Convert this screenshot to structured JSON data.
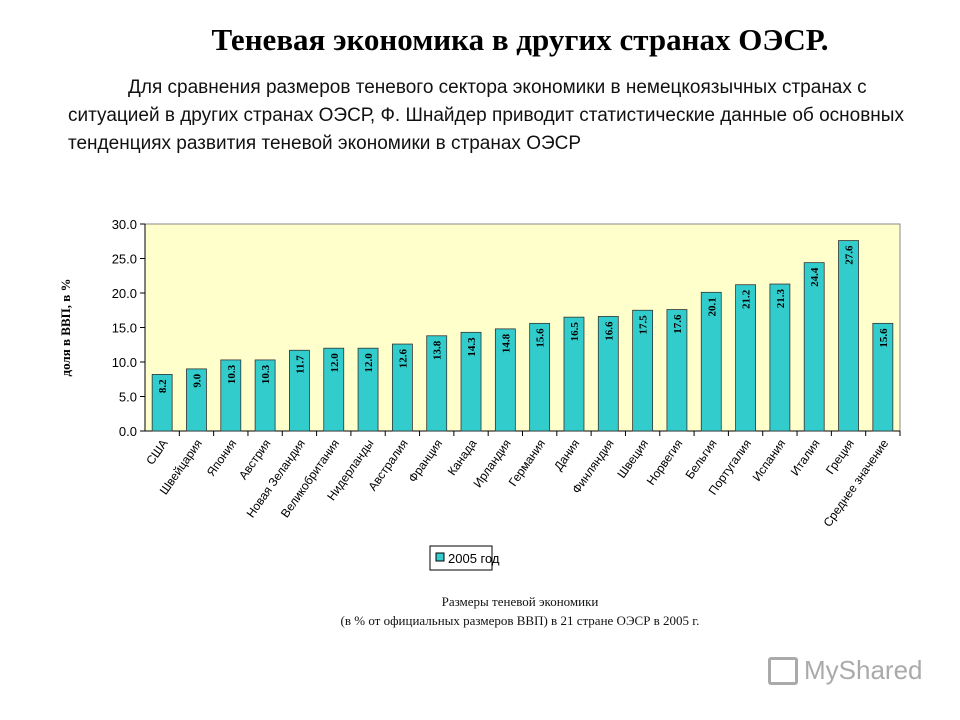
{
  "title": "Теневая экономика в других странах ОЭСР.",
  "intro": "Для сравнения размеров теневого сектора экономики в немецкоязычных странах с ситуацией в других странах ОЭСР, Ф. Шнайдер приводит статистические данные об основных тенденциях развития теневой экономики в странах ОЭСР",
  "caption_line1": "Размеры теневой экономики",
  "caption_line2": "(в % от официальных размеров ВВП) в 21 стране ОЭСР в 2005 г.",
  "logo": "MyShared",
  "chart_data": {
    "type": "bar",
    "ylabel": "доля в ВВП, в %",
    "ylim": [
      0,
      30
    ],
    "yticks": [
      "0.0",
      "5.0",
      "10.0",
      "15.0",
      "20.0",
      "25.0",
      "30.0"
    ],
    "grid": false,
    "legend_position": "bottom",
    "plot_background": "#ffffcc",
    "bar_color": "#33cccc",
    "categories": [
      "США",
      "Швейцария",
      "Япония",
      "Австрия",
      "Новая Зеландия",
      "Великобритания",
      "Нидерланды",
      "Австралия",
      "Франция",
      "Канада",
      "Ирландия",
      "Германия",
      "Дания",
      "Финляндия",
      "Швеция",
      "Норвегия",
      "Бельгия",
      "Португалия",
      "Испания",
      "Италия",
      "Греция",
      "Среднее значение"
    ],
    "series": [
      {
        "name": "2005 год",
        "values": [
          8.2,
          9.0,
          10.3,
          10.3,
          11.7,
          12.0,
          12.0,
          12.6,
          13.8,
          14.3,
          14.8,
          15.6,
          16.5,
          16.6,
          17.5,
          17.6,
          20.1,
          21.2,
          21.3,
          24.4,
          27.6,
          15.6
        ]
      }
    ]
  }
}
